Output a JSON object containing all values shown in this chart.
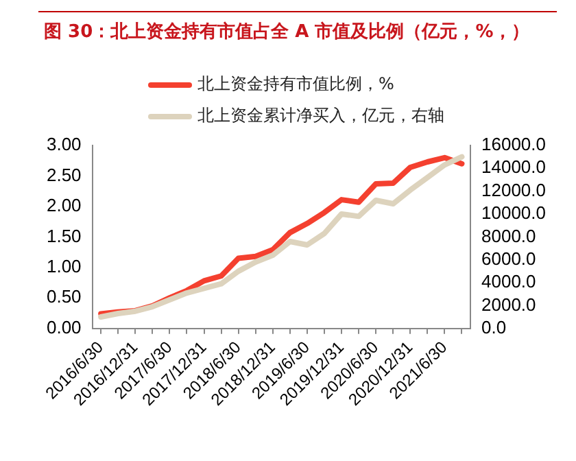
{
  "chart_data": {
    "type": "line",
    "title": "图 30：北上资金持有市值占全 A 市值及比例（亿元，%，）",
    "categories": [
      "2016/6/30",
      null,
      "2016/12/31",
      null,
      "2017/6/30",
      null,
      "2017/12/31",
      null,
      "2018/6/30",
      null,
      "2018/12/31",
      null,
      "2019/6/30",
      null,
      "2019/12/31",
      null,
      "2020/6/30",
      null,
      "2020/12/31",
      null,
      "2021/6/30",
      null
    ],
    "series": [
      {
        "name": "北上资金持有市值比例，%",
        "color": "#f4402f",
        "values": [
          0.24,
          0.27,
          0.29,
          0.37,
          0.5,
          0.62,
          0.78,
          0.86,
          1.15,
          1.18,
          1.29,
          1.57,
          1.72,
          1.9,
          2.11,
          2.07,
          2.37,
          2.38,
          2.64,
          2.73,
          2.8,
          2.7
        ]
      },
      {
        "name": "北上资金累计净买入，亿元，右轴",
        "color": "#ddd3bd",
        "axis": "y2",
        "values": [
          1000,
          1300,
          1500,
          1900,
          2500,
          3100,
          3500,
          3900,
          5000,
          5800,
          6400,
          7600,
          7300,
          8300,
          10000,
          9800,
          11200,
          10900,
          12100,
          13200,
          14300,
          15000
        ]
      }
    ],
    "ylim": [
      0,
      3
    ],
    "yticks": [
      {
        "value": 0,
        "label": "0.00"
      },
      {
        "value": 0.5,
        "label": "0.50"
      },
      {
        "value": 1,
        "label": "1.00"
      },
      {
        "value": 1.5,
        "label": "1.50"
      },
      {
        "value": 2,
        "label": "2.00"
      },
      {
        "value": 2.5,
        "label": "2.50"
      },
      {
        "value": 3,
        "label": "3.00"
      }
    ],
    "y2lim": [
      0,
      16000
    ],
    "y2ticks": [
      {
        "value": 0,
        "label": "0.0"
      },
      {
        "value": 2000,
        "label": "2000.0"
      },
      {
        "value": 4000,
        "label": "4000.0"
      },
      {
        "value": 6000,
        "label": "6000.0"
      },
      {
        "value": 8000,
        "label": "8000.0"
      },
      {
        "value": 10000,
        "label": "10000.0"
      },
      {
        "value": 12000,
        "label": "12000.0"
      },
      {
        "value": 14000,
        "label": "14000.0"
      },
      {
        "value": 16000,
        "label": "16000.0"
      }
    ],
    "grid": false,
    "legend": "top",
    "marker": "none",
    "line_style": "solid"
  }
}
